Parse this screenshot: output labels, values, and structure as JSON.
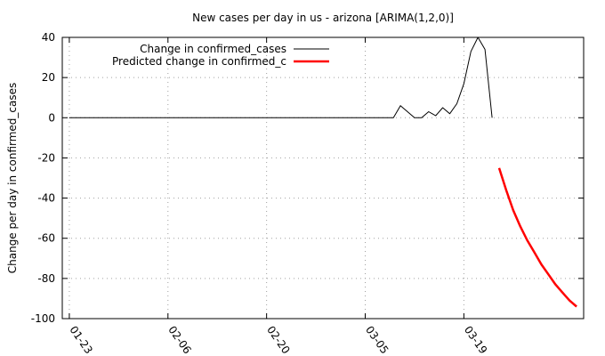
{
  "chart_data": {
    "type": "line",
    "title": "New cases per day in us - arizona [ARIMA(1,2,0)]",
    "xlabel": "",
    "ylabel": "Change per day in confirmed_cases",
    "x_axis": {
      "type": "date",
      "start": "2020-01-23",
      "ticks": [
        "01-23",
        "02-06",
        "02-20",
        "03-05",
        "03-19"
      ],
      "tick_dates": [
        "2020-01-23",
        "2020-02-06",
        "2020-02-20",
        "2020-03-05",
        "2020-03-19"
      ],
      "range": [
        "2020-01-22",
        "2020-04-01"
      ]
    },
    "y_axis": {
      "range": [
        -100,
        40
      ],
      "ticks": [
        -100,
        -80,
        -60,
        -40,
        -20,
        0,
        20,
        40
      ]
    },
    "grid": true,
    "legend_position": "top-left",
    "series": [
      {
        "name": "Change in confirmed_cases",
        "color": "#000000",
        "points": [
          [
            "2020-01-23",
            0
          ],
          [
            "2020-03-09",
            0
          ],
          [
            "2020-03-10",
            6
          ],
          [
            "2020-03-11",
            3
          ],
          [
            "2020-03-12",
            0
          ],
          [
            "2020-03-13",
            0
          ],
          [
            "2020-03-14",
            3
          ],
          [
            "2020-03-15",
            1
          ],
          [
            "2020-03-16",
            5
          ],
          [
            "2020-03-17",
            2
          ],
          [
            "2020-03-18",
            7
          ],
          [
            "2020-03-19",
            17
          ],
          [
            "2020-03-20",
            33
          ],
          [
            "2020-03-21",
            40
          ],
          [
            "2020-03-22",
            34
          ],
          [
            "2020-03-23",
            0
          ]
        ]
      },
      {
        "name": "Predicted change in confirmed_c",
        "color": "#ff0000",
        "points": [
          [
            "2020-03-24",
            -25
          ],
          [
            "2020-03-25",
            -36
          ],
          [
            "2020-03-26",
            -46
          ],
          [
            "2020-03-27",
            -54
          ],
          [
            "2020-03-28",
            -61
          ],
          [
            "2020-03-29",
            -67
          ],
          [
            "2020-03-30",
            -73
          ],
          [
            "2020-03-31",
            -78
          ],
          [
            "2020-04-01",
            -83
          ],
          [
            "2020-04-02",
            -87
          ],
          [
            "2020-04-03",
            -91
          ],
          [
            "2020-04-04",
            -94
          ]
        ]
      }
    ]
  }
}
